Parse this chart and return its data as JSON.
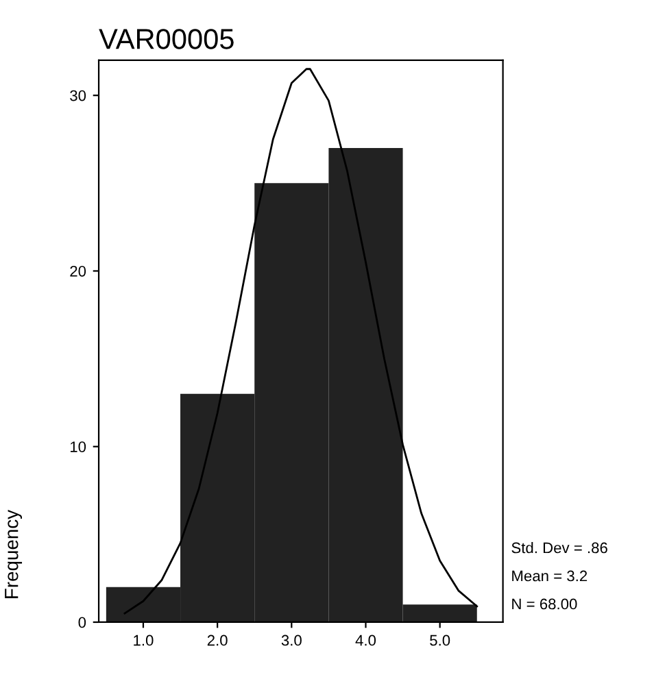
{
  "chart_data": {
    "type": "histogram",
    "title": "VAR00005",
    "ylabel": "Frequency",
    "bins": [
      0.5,
      1.5,
      2.5,
      3.5,
      4.5,
      5.5
    ],
    "values": [
      2,
      13,
      25,
      27,
      1
    ],
    "color": "#222222",
    "series": [
      {
        "type": "line",
        "color": "#000000",
        "x": [
          0.75,
          1.0,
          1.25,
          1.5,
          1.75,
          2.0,
          2.25,
          2.5,
          2.75,
          3.0,
          3.2,
          3.25,
          3.5,
          3.75,
          4.0,
          4.25,
          4.5,
          4.75,
          5.0,
          5.25,
          5.5
        ],
        "values": [
          0.5,
          1.2,
          2.4,
          4.5,
          7.6,
          11.9,
          17.1,
          22.6,
          27.5,
          30.7,
          31.5,
          31.5,
          29.7,
          25.7,
          20.5,
          15.0,
          10.1,
          6.2,
          3.5,
          1.8,
          0.9
        ]
      }
    ],
    "xlim": [
      0.4,
      5.85
    ],
    "ylim": [
      0,
      32
    ],
    "xticks": [
      {
        "value": 1,
        "label": "1.0"
      },
      {
        "value": 2,
        "label": "2.0"
      },
      {
        "value": 3,
        "label": "3.0"
      },
      {
        "value": 4,
        "label": "4.0"
      },
      {
        "value": 5,
        "label": "5.0"
      }
    ],
    "yticks": [
      0,
      10,
      20,
      30
    ],
    "grid": false,
    "legend": false,
    "annotations": [
      "Std. Dev = .86",
      "Mean = 3.2",
      "N = 68.00"
    ]
  }
}
